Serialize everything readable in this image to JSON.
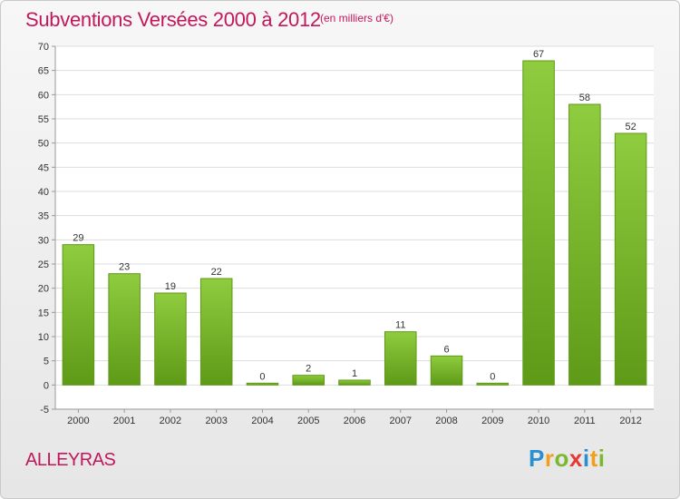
{
  "header": {
    "title": "Subventions Versées 2000 à 2012",
    "unit_note": "(en milliers d'€)"
  },
  "footer": {
    "commune": "ALLEYRAS",
    "logo_letters": [
      "P",
      "r",
      "o",
      "x",
      "i",
      "t",
      "i"
    ]
  },
  "chart_data": {
    "type": "bar",
    "categories": [
      "2000",
      "2001",
      "2002",
      "2003",
      "2004",
      "2005",
      "2006",
      "2007",
      "2008",
      "2009",
      "2010",
      "2011",
      "2012"
    ],
    "values": [
      29,
      23,
      19,
      22,
      0,
      2,
      1,
      11,
      6,
      0,
      67,
      58,
      52
    ],
    "title": "Subventions Versées 2000 à 2012",
    "subtitle": "(en milliers d'€)",
    "xlabel": "",
    "ylabel": "",
    "ylim": [
      -5,
      70
    ],
    "yticks": [
      -5,
      0,
      5,
      10,
      15,
      20,
      25,
      30,
      35,
      40,
      45,
      50,
      55,
      60,
      65,
      70
    ],
    "grid": true,
    "bar_color": "#7cb82f",
    "bar_color_dark": "#5e9a17"
  }
}
